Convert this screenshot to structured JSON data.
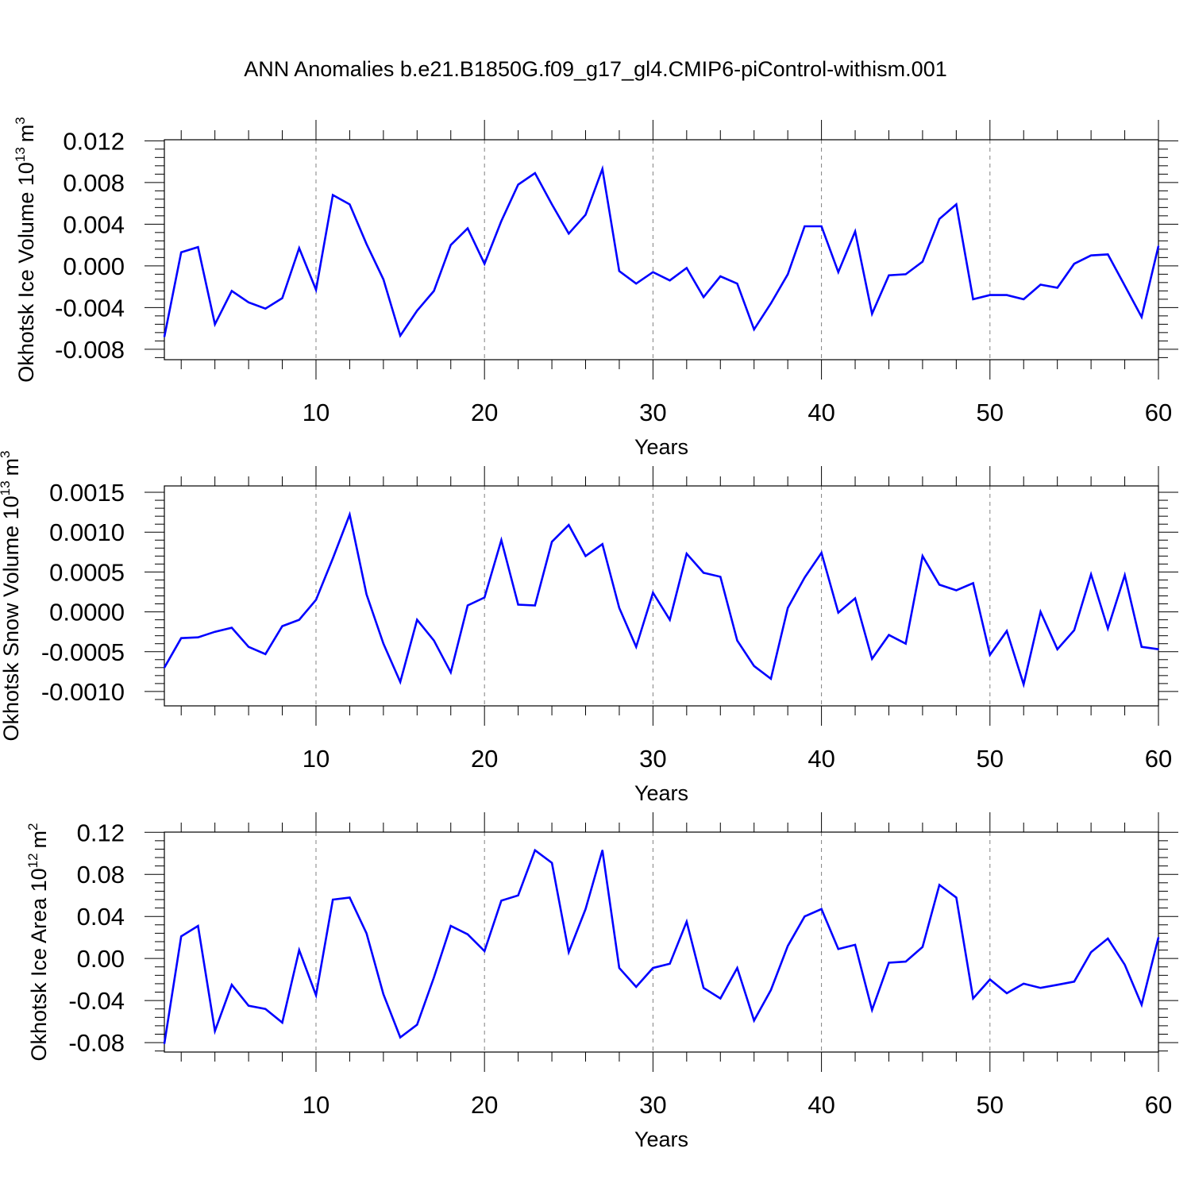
{
  "figure": {
    "title": "ANN Anomalies b.e21.B1850G.f09_g17_gl4.CMIP6-piControl-withism.001"
  },
  "colors": {
    "line": "#0000ff",
    "axis": "#000000",
    "grid": "#808080"
  },
  "chart_data": [
    {
      "type": "line",
      "ylabel": "Okhotsk Ice Volume 10",
      "ylabel_sup": "13",
      "ylabel_unit": "m",
      "ylabel_unit_sup": "3",
      "xlabel": "Years",
      "xlim": [
        1,
        60
      ],
      "ylim": [
        -0.009,
        0.0121
      ],
      "yticks": [
        -0.008,
        -0.004,
        0.0,
        0.004,
        0.008,
        0.012
      ],
      "ytick_labels": [
        "-0.008",
        "-0.004",
        "0.000",
        "0.004",
        "0.008",
        "0.012"
      ],
      "xticks": [
        10,
        20,
        30,
        40,
        50,
        60
      ],
      "xtick_labels": [
        "10",
        "20",
        "30",
        "40",
        "50",
        "60"
      ],
      "grid": "vertical dashed at major x ticks",
      "series": [
        {
          "x": [
            1,
            2,
            3,
            4,
            5,
            6,
            7,
            8,
            9,
            10,
            11,
            12,
            13,
            14,
            15,
            16,
            17,
            18,
            19,
            20,
            21,
            22,
            23,
            24,
            25,
            26,
            27,
            28,
            29,
            30,
            31,
            32,
            33,
            34,
            35,
            36,
            37,
            38,
            39,
            40,
            41,
            42,
            43,
            44,
            45,
            46,
            47,
            48,
            49,
            50,
            51,
            52,
            53,
            54,
            55,
            56,
            57,
            58,
            59,
            60
          ],
          "values": [
            -0.0068,
            0.0013,
            0.0018,
            -0.0056,
            -0.0024,
            -0.0035,
            -0.0041,
            -0.0031,
            0.0017,
            -0.0023,
            0.0068,
            0.0059,
            0.0021,
            -0.0013,
            -0.0067,
            -0.0043,
            -0.0024,
            0.002,
            0.0036,
            0.0002,
            0.0043,
            0.0078,
            0.0089,
            0.0059,
            0.0031,
            0.0049,
            0.0093,
            -0.0005,
            -0.0017,
            -0.0006,
            -0.0014,
            -0.0002,
            -0.003,
            -0.001,
            -0.0017,
            -0.0061,
            -0.0036,
            -0.0008,
            0.0038,
            0.0038,
            -0.0006,
            0.0033,
            -0.0046,
            -0.0009,
            -0.0008,
            0.0004,
            0.0045,
            0.0059,
            -0.0032,
            -0.0028,
            -0.0028,
            -0.0032,
            -0.0018,
            -0.0021,
            0.0002,
            0.001,
            0.0011,
            -0.0019,
            -0.0049,
            0.0019
          ]
        }
      ]
    },
    {
      "type": "line",
      "ylabel": "Okhotsk Snow Volume 10",
      "ylabel_sup": "13",
      "ylabel_unit": "m",
      "ylabel_unit_sup": "3",
      "xlabel": "Years",
      "xlim": [
        1,
        60
      ],
      "ylim": [
        -0.00118,
        0.00158
      ],
      "yticks": [
        -0.001,
        -0.0005,
        0.0,
        0.0005,
        0.001,
        0.0015
      ],
      "ytick_labels": [
        "-0.0010",
        "-0.0005",
        "0.0000",
        "0.0005",
        "0.0010",
        "0.0015"
      ],
      "xticks": [
        10,
        20,
        30,
        40,
        50,
        60
      ],
      "xtick_labels": [
        "10",
        "20",
        "30",
        "40",
        "50",
        "60"
      ],
      "grid": "vertical dashed at major x ticks",
      "series": [
        {
          "x": [
            1,
            2,
            3,
            4,
            5,
            6,
            7,
            8,
            9,
            10,
            11,
            12,
            13,
            14,
            15,
            16,
            17,
            18,
            19,
            20,
            21,
            22,
            23,
            24,
            25,
            26,
            27,
            28,
            29,
            30,
            31,
            32,
            33,
            34,
            35,
            36,
            37,
            38,
            39,
            40,
            41,
            42,
            43,
            44,
            45,
            46,
            47,
            48,
            49,
            50,
            51,
            52,
            53,
            54,
            55,
            56,
            57,
            58,
            59,
            60
          ],
          "values": [
            -0.0007,
            -0.00033,
            -0.00032,
            -0.00025,
            -0.0002,
            -0.00044,
            -0.00053,
            -0.00018,
            -0.0001,
            0.00015,
            0.00067,
            0.00122,
            0.00022,
            -0.0004,
            -0.00088,
            -0.0001,
            -0.00036,
            -0.00076,
            8e-05,
            0.00018,
            0.0009,
            9e-05,
            8e-05,
            0.00088,
            0.00109,
            0.0007,
            0.00085,
            5e-05,
            -0.00044,
            0.00024,
            -0.0001,
            0.00073,
            0.00049,
            0.00044,
            -0.00036,
            -0.00068,
            -0.00084,
            5e-05,
            0.00043,
            0.00074,
            -1e-05,
            0.00017,
            -0.00059,
            -0.00029,
            -0.0004,
            0.0007,
            0.00034,
            0.00027,
            0.00036,
            -0.00054,
            -0.00024,
            -0.00091,
            0.0,
            -0.00047,
            -0.00023,
            0.00047,
            -0.00021,
            0.00046,
            -0.00044,
            -0.00047
          ]
        }
      ]
    },
    {
      "type": "line",
      "ylabel": "Okhotsk Ice Area 10",
      "ylabel_sup": "12",
      "ylabel_unit": "m",
      "ylabel_unit_sup": "2",
      "xlabel": "Years",
      "xlim": [
        1,
        60
      ],
      "ylim": [
        -0.089,
        0.1202
      ],
      "yticks": [
        -0.08,
        -0.04,
        0.0,
        0.04,
        0.08,
        0.12
      ],
      "ytick_labels": [
        "-0.08",
        "-0.04",
        "0.00",
        "0.04",
        "0.08",
        "0.12"
      ],
      "xticks": [
        10,
        20,
        30,
        40,
        50,
        60
      ],
      "xtick_labels": [
        "10",
        "20",
        "30",
        "40",
        "50",
        "60"
      ],
      "grid": "vertical dashed at major x ticks",
      "series": [
        {
          "x": [
            1,
            2,
            3,
            4,
            5,
            6,
            7,
            8,
            9,
            10,
            11,
            12,
            13,
            14,
            15,
            16,
            17,
            18,
            19,
            20,
            21,
            22,
            23,
            24,
            25,
            26,
            27,
            28,
            29,
            30,
            31,
            32,
            33,
            34,
            35,
            36,
            37,
            38,
            39,
            40,
            41,
            42,
            43,
            44,
            45,
            46,
            47,
            48,
            49,
            50,
            51,
            52,
            53,
            54,
            55,
            56,
            57,
            58,
            59,
            60
          ],
          "values": [
            -0.081,
            0.021,
            0.031,
            -0.069,
            -0.025,
            -0.045,
            -0.048,
            -0.061,
            0.008,
            -0.035,
            0.056,
            0.058,
            0.024,
            -0.034,
            -0.075,
            -0.063,
            -0.018,
            0.031,
            0.023,
            0.007,
            0.055,
            0.06,
            0.103,
            0.091,
            0.006,
            0.047,
            0.103,
            -0.009,
            -0.027,
            -0.009,
            -0.005,
            0.035,
            -0.028,
            -0.038,
            -0.009,
            -0.059,
            -0.03,
            0.012,
            0.04,
            0.047,
            0.009,
            0.013,
            -0.049,
            -0.004,
            -0.003,
            0.011,
            0.07,
            0.058,
            -0.038,
            -0.02,
            -0.033,
            -0.024,
            -0.028,
            -0.025,
            -0.022,
            0.006,
            0.019,
            -0.006,
            -0.044,
            0.02
          ]
        }
      ]
    }
  ]
}
